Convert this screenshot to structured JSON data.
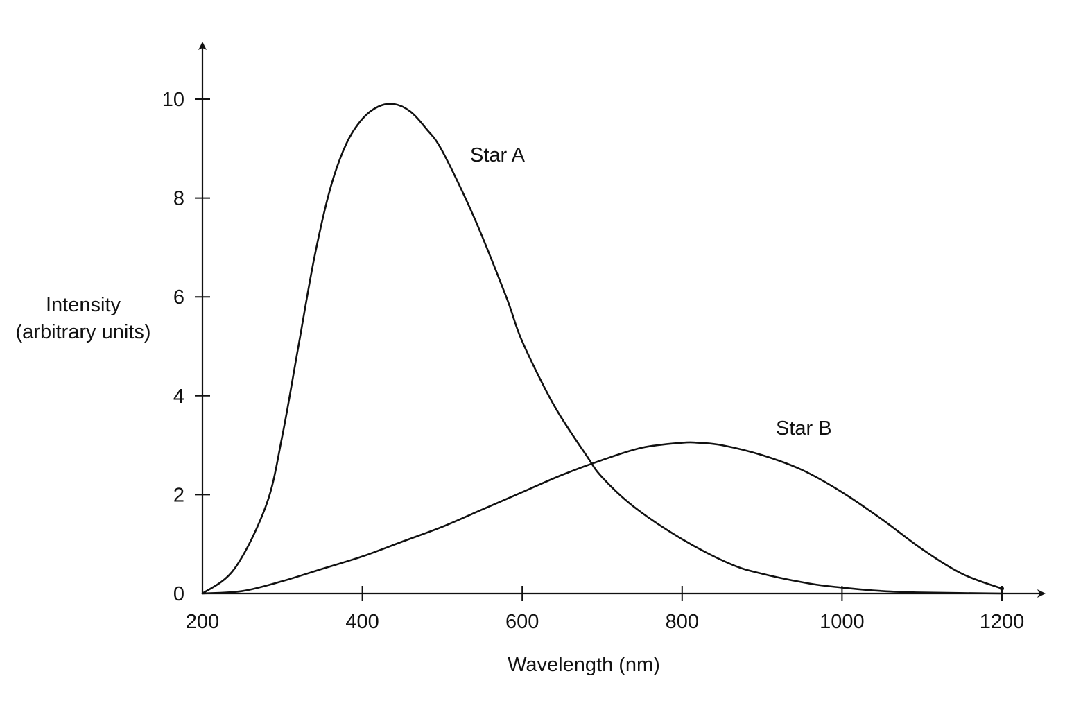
{
  "chart_data": {
    "type": "line",
    "xlabel": "Wavelength (nm)",
    "ylabel_line1": "Intensity",
    "ylabel_line2": "(arbitrary units)",
    "xlim": [
      200,
      1200
    ],
    "ylim": [
      0,
      10
    ],
    "x_ticks": [
      200,
      400,
      600,
      800,
      1000,
      1200
    ],
    "x_tick_labels": [
      "200",
      "400",
      "600",
      "800",
      "1000",
      "1200"
    ],
    "y_ticks": [
      0,
      2,
      4,
      6,
      8,
      10
    ],
    "y_tick_labels": [
      "0",
      "2",
      "4",
      "6",
      "8",
      "10"
    ],
    "grid": false,
    "legend": "none",
    "series": [
      {
        "name": "Star A",
        "x": [
          200,
          240,
          280,
          300,
          320,
          340,
          360,
          380,
          400,
          420,
          440,
          460,
          480,
          500,
          540,
          580,
          600,
          640,
          680,
          700,
          740,
          800,
          860,
          900,
          960,
          1000,
          1050,
          1100,
          1200
        ],
        "y": [
          0.0,
          0.5,
          1.8,
          3.2,
          5.0,
          6.8,
          8.2,
          9.1,
          9.6,
          9.85,
          9.9,
          9.75,
          9.4,
          8.95,
          7.6,
          6.0,
          5.1,
          3.8,
          2.8,
          2.35,
          1.75,
          1.1,
          0.6,
          0.4,
          0.2,
          0.12,
          0.05,
          0.02,
          0.0
        ]
      },
      {
        "name": "Star B",
        "x": [
          200,
          250,
          300,
          350,
          400,
          450,
          500,
          550,
          600,
          650,
          700,
          750,
          800,
          820,
          850,
          900,
          950,
          1000,
          1050,
          1100,
          1150,
          1200
        ],
        "y": [
          0.0,
          0.05,
          0.25,
          0.5,
          0.75,
          1.05,
          1.35,
          1.7,
          2.05,
          2.4,
          2.7,
          2.95,
          3.05,
          3.05,
          3.0,
          2.8,
          2.5,
          2.05,
          1.5,
          0.9,
          0.4,
          0.1
        ]
      }
    ],
    "annotations": [
      {
        "text": "Star A",
        "x": 530,
        "y": 8.7
      },
      {
        "text": "Star B",
        "x": 920,
        "y": 3.2
      }
    ]
  }
}
